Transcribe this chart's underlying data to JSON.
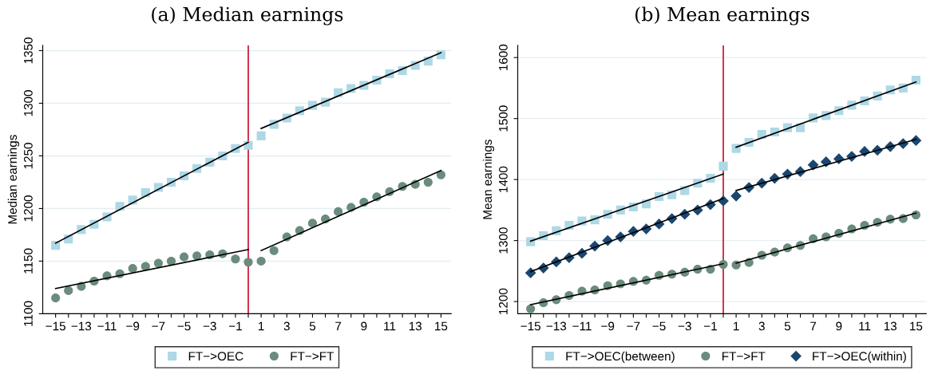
{
  "chart_data": [
    {
      "type": "scatter",
      "title": "(a) Median earnings",
      "ylabel": "Median earnings",
      "x": [
        -15,
        -14,
        -13,
        -12,
        -11,
        -10,
        -9,
        -8,
        -7,
        -6,
        -5,
        -4,
        -3,
        -2,
        -1,
        0,
        1,
        2,
        3,
        4,
        5,
        6,
        7,
        8,
        9,
        10,
        11,
        12,
        13,
        14,
        15
      ],
      "xlim": [
        -16,
        15.8
      ],
      "ylim": [
        1100,
        1355
      ],
      "yticks": [
        1100,
        1150,
        1200,
        1250,
        1300,
        1350
      ],
      "xticks": [
        -15,
        {
          "value": -14,
          "label": null
        },
        -13,
        {
          "value": -12,
          "label": null
        },
        -11,
        {
          "value": -10,
          "label": null
        },
        -9,
        {
          "value": -8,
          "label": null
        },
        -7,
        {
          "value": -6,
          "label": null
        },
        -5,
        {
          "value": -4,
          "label": null
        },
        -3,
        {
          "value": -2,
          "label": null
        },
        -1,
        {
          "value": 0,
          "label": null
        },
        1,
        {
          "value": 2,
          "label": null
        },
        3,
        {
          "value": 4,
          "label": null
        },
        5,
        {
          "value": 6,
          "label": null
        },
        7,
        {
          "value": 8,
          "label": null
        },
        9,
        {
          "value": 10,
          "label": null
        },
        11,
        {
          "value": 12,
          "label": null
        },
        13,
        {
          "value": 14,
          "label": null
        },
        15
      ],
      "grid": "y",
      "legend": "bottom",
      "ref_lines": [
        {
          "axis": "x",
          "value": 0,
          "color": "#c8102e"
        }
      ],
      "series": [
        {
          "name": "FT−>OEC",
          "marker": "square",
          "color": "#add8e6",
          "values": [
            1165,
            1171,
            1180,
            1185,
            1192,
            1202,
            1208,
            1215,
            1220,
            1225,
            1231,
            1238,
            1244,
            1250,
            1257,
            1260,
            1269,
            1280,
            1286,
            1293,
            1298,
            1301,
            1310,
            1314,
            1317,
            1322,
            1328,
            1331,
            1336,
            1340,
            1346
          ]
        },
        {
          "name": "FT−>FT",
          "marker": "circle",
          "color": "#6b8c7c",
          "values": [
            1115,
            1122,
            1126,
            1131,
            1136,
            1138,
            1143,
            1145,
            1148,
            1150,
            1154,
            1155,
            1156,
            1157,
            1152,
            1149,
            1150,
            1160,
            1173,
            1179,
            1186,
            1190,
            1197,
            1201,
            1206,
            1211,
            1216,
            1221,
            1223,
            1225,
            1232
          ]
        },
        {
          "type": "line",
          "color": "#000000",
          "x": [
            -15,
            0
          ],
          "values": [
            1167,
            1263
          ]
        },
        {
          "type": "line",
          "color": "#000000",
          "x": [
            1,
            15
          ],
          "values": [
            1276,
            1348
          ]
        },
        {
          "type": "line",
          "color": "#000000",
          "x": [
            -15,
            0
          ],
          "values": [
            1124,
            1161
          ]
        },
        {
          "type": "line",
          "color": "#000000",
          "x": [
            1,
            15
          ],
          "values": [
            1160,
            1236
          ]
        }
      ]
    },
    {
      "type": "scatter",
      "title": "(b) Mean earnings",
      "ylabel": "Mean earnings",
      "x": [
        -15,
        -14,
        -13,
        -12,
        -11,
        -10,
        -9,
        -8,
        -7,
        -6,
        -5,
        -4,
        -3,
        -2,
        -1,
        0,
        1,
        2,
        3,
        4,
        5,
        6,
        7,
        8,
        9,
        10,
        11,
        12,
        13,
        14,
        15
      ],
      "xlim": [
        -16,
        15.8
      ],
      "ylim": [
        1180,
        1620
      ],
      "yticks": [
        1200,
        1300,
        1400,
        1500,
        1600
      ],
      "xticks": [
        -15,
        {
          "value": -14,
          "label": null
        },
        -13,
        {
          "value": -12,
          "label": null
        },
        -11,
        {
          "value": -10,
          "label": null
        },
        -9,
        {
          "value": -8,
          "label": null
        },
        -7,
        {
          "value": -6,
          "label": null
        },
        -5,
        {
          "value": -4,
          "label": null
        },
        -3,
        {
          "value": -2,
          "label": null
        },
        -1,
        {
          "value": 0,
          "label": null
        },
        1,
        {
          "value": 2,
          "label": null
        },
        3,
        {
          "value": 4,
          "label": null
        },
        5,
        {
          "value": 6,
          "label": null
        },
        7,
        {
          "value": 8,
          "label": null
        },
        9,
        {
          "value": 10,
          "label": null
        },
        11,
        {
          "value": 12,
          "label": null
        },
        13,
        {
          "value": 14,
          "label": null
        },
        15
      ],
      "grid": "y",
      "legend": "bottom",
      "ref_lines": [
        {
          "axis": "x",
          "value": 0,
          "color": "#c8102e"
        }
      ],
      "series": [
        {
          "name": "FT−>OEC(between)",
          "marker": "square",
          "color": "#add8e6",
          "values": [
            1298,
            1308,
            1316,
            1325,
            1332,
            1334,
            1343,
            1350,
            1355,
            1360,
            1372,
            1375,
            1382,
            1394,
            1402,
            1422,
            1451,
            1461,
            1474,
            1478,
            1485,
            1485,
            1501,
            1505,
            1513,
            1522,
            1529,
            1537,
            1547,
            1550,
            1563
          ]
        },
        {
          "name": "FT−>FT",
          "marker": "circle",
          "color": "#6b8c7c",
          "values": [
            1188,
            1198,
            1203,
            1210,
            1217,
            1219,
            1226,
            1229,
            1233,
            1235,
            1243,
            1245,
            1248,
            1253,
            1253,
            1261,
            1260,
            1264,
            1276,
            1281,
            1288,
            1292,
            1303,
            1306,
            1312,
            1319,
            1325,
            1330,
            1335,
            1336,
            1342
          ]
        },
        {
          "name": "FT−>OEC(within)",
          "marker": "diamond",
          "color": "#1a476f",
          "values": [
            1247,
            1255,
            1265,
            1272,
            1279,
            1291,
            1300,
            1306,
            1315,
            1319,
            1327,
            1336,
            1343,
            1350,
            1359,
            1365,
            1373,
            1387,
            1394,
            1402,
            1409,
            1413,
            1424,
            1429,
            1434,
            1438,
            1446,
            1448,
            1454,
            1459,
            1464
          ]
        },
        {
          "type": "line",
          "color": "#000000",
          "x": [
            -15,
            0
          ],
          "values": [
            1299,
            1409
          ]
        },
        {
          "type": "line",
          "color": "#000000",
          "x": [
            1,
            15
          ],
          "values": [
            1453,
            1560
          ]
        },
        {
          "type": "line",
          "color": "#000000",
          "x": [
            -15,
            0
          ],
          "values": [
            1249,
            1369
          ]
        },
        {
          "type": "line",
          "color": "#000000",
          "x": [
            1,
            15
          ],
          "values": [
            1382,
            1466
          ]
        },
        {
          "type": "line",
          "color": "#000000",
          "x": [
            -15,
            0
          ],
          "values": [
            1195,
            1262
          ]
        },
        {
          "type": "line",
          "color": "#000000",
          "x": [
            1,
            15
          ],
          "values": [
            1263,
            1345
          ]
        }
      ]
    }
  ]
}
